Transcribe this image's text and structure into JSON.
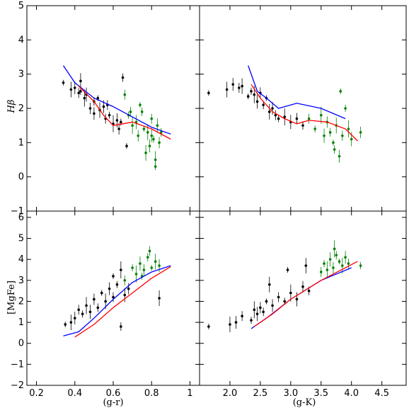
{
  "chart_data": [
    {
      "panel": "top-left",
      "type": "scatter",
      "xlabel": "",
      "ylabel": "Hβ",
      "xlim": [
        0.15,
        1.05
      ],
      "ylim": [
        -1,
        5
      ],
      "yticks": [
        -1,
        0,
        1,
        2,
        3,
        4,
        5
      ],
      "series": [
        {
          "color": "#000000",
          "kind": "points",
          "x": [
            0.34,
            0.38,
            0.4,
            0.42,
            0.43,
            0.45,
            0.46,
            0.48,
            0.5,
            0.52,
            0.53,
            0.55,
            0.56,
            0.58,
            0.6,
            0.62,
            0.63,
            0.65,
            0.67,
            0.43,
            0.5,
            0.57,
            0.64
          ],
          "y": [
            2.75,
            2.55,
            2.6,
            2.45,
            2.5,
            2.3,
            2.4,
            2.0,
            2.2,
            2.3,
            1.95,
            2.05,
            1.7,
            1.8,
            1.55,
            1.65,
            1.4,
            2.9,
            0.9,
            2.8,
            1.85,
            2.1,
            1.6
          ]
        },
        {
          "color": "#008000",
          "kind": "points",
          "x": [
            0.66,
            0.68,
            0.7,
            0.72,
            0.73,
            0.75,
            0.76,
            0.78,
            0.79,
            0.8,
            0.81,
            0.82,
            0.83,
            0.84,
            0.85,
            0.74,
            0.77,
            0.8,
            0.69,
            0.82
          ],
          "y": [
            2.4,
            1.8,
            1.5,
            1.6,
            1.2,
            1.9,
            1.4,
            1.3,
            0.9,
            1.7,
            1.1,
            0.5,
            1.5,
            1.0,
            1.3,
            2.1,
            0.7,
            1.2,
            1.9,
            0.3
          ]
        },
        {
          "color": "#0000ff",
          "kind": "line",
          "x": [
            0.34,
            0.4,
            0.5,
            0.6,
            0.7,
            0.8,
            0.9
          ],
          "y": [
            3.25,
            2.75,
            2.3,
            2.05,
            1.75,
            1.45,
            1.25
          ]
        },
        {
          "color": "#ff0000",
          "kind": "line",
          "x": [
            0.42,
            0.5,
            0.55,
            0.6,
            0.65,
            0.7,
            0.8,
            0.9
          ],
          "y": [
            2.65,
            2.2,
            1.8,
            1.5,
            1.55,
            1.6,
            1.4,
            1.1
          ]
        }
      ]
    },
    {
      "panel": "top-right",
      "type": "scatter",
      "xlabel": "",
      "ylabel": "",
      "xlim": [
        1.5,
        4.9
      ],
      "ylim": [
        -1,
        5
      ],
      "series": [
        {
          "color": "#000000",
          "kind": "points",
          "x": [
            1.65,
            1.95,
            2.05,
            2.15,
            2.35,
            2.4,
            2.45,
            2.5,
            2.55,
            2.6,
            2.65,
            2.7,
            2.75,
            2.8,
            2.9,
            3.0,
            3.1,
            3.2,
            2.3,
            2.2
          ],
          "y": [
            2.45,
            2.55,
            2.7,
            2.6,
            2.5,
            2.4,
            2.2,
            2.45,
            2.1,
            2.3,
            1.9,
            2.0,
            1.8,
            1.7,
            1.75,
            1.6,
            1.7,
            1.5,
            2.35,
            2.65
          ]
        },
        {
          "color": "#008000",
          "kind": "points",
          "x": [
            3.3,
            3.4,
            3.5,
            3.55,
            3.6,
            3.65,
            3.7,
            3.75,
            3.8,
            3.85,
            3.9,
            3.95,
            4.0,
            4.15,
            3.72,
            3.82
          ],
          "y": [
            1.7,
            1.4,
            1.8,
            1.2,
            1.6,
            1.3,
            1.0,
            1.5,
            0.6,
            1.2,
            2.0,
            1.4,
            1.1,
            1.3,
            0.8,
            2.5
          ]
        },
        {
          "color": "#0000ff",
          "kind": "line",
          "x": [
            2.3,
            2.45,
            2.6,
            2.8,
            3.1,
            3.5,
            3.9
          ],
          "y": [
            3.25,
            2.5,
            2.3,
            2.0,
            2.15,
            2.0,
            1.7
          ]
        },
        {
          "color": "#ff0000",
          "kind": "line",
          "x": [
            2.35,
            2.5,
            2.7,
            2.9,
            3.1,
            3.3,
            3.6,
            3.9,
            4.1
          ],
          "y": [
            2.7,
            2.3,
            1.9,
            1.7,
            1.55,
            1.65,
            1.6,
            1.4,
            1.05
          ]
        }
      ]
    },
    {
      "panel": "bottom-left",
      "type": "scatter",
      "xlabel": "(g-r)",
      "ylabel": "[MgFe]",
      "xlim": [
        0.15,
        1.05
      ],
      "ylim": [
        -2,
        6.3
      ],
      "xticks": [
        0.2,
        0.4,
        0.6,
        0.8,
        1.0
      ],
      "yticks": [
        -2,
        -1,
        0,
        1,
        2,
        3,
        4,
        5,
        6
      ],
      "series": [
        {
          "color": "#000000",
          "kind": "points",
          "x": [
            0.35,
            0.38,
            0.4,
            0.42,
            0.44,
            0.46,
            0.48,
            0.5,
            0.52,
            0.54,
            0.56,
            0.58,
            0.6,
            0.62,
            0.64,
            0.66,
            0.68,
            0.64,
            0.6,
            0.84
          ],
          "y": [
            0.9,
            1.0,
            1.2,
            1.6,
            1.4,
            1.8,
            1.5,
            2.1,
            1.7,
            2.4,
            2.0,
            2.6,
            2.2,
            2.8,
            3.5,
            2.3,
            2.6,
            0.8,
            3.2,
            2.15
          ]
        },
        {
          "color": "#008000",
          "kind": "points",
          "x": [
            0.66,
            0.7,
            0.72,
            0.74,
            0.76,
            0.78,
            0.8,
            0.82,
            0.84,
            0.79,
            0.75
          ],
          "y": [
            3.0,
            3.6,
            3.3,
            3.8,
            3.5,
            4.1,
            3.6,
            3.9,
            3.7,
            4.4,
            3.2
          ]
        },
        {
          "color": "#0000ff",
          "kind": "line",
          "x": [
            0.34,
            0.42,
            0.5,
            0.6,
            0.7,
            0.8,
            0.9
          ],
          "y": [
            0.35,
            0.55,
            1.2,
            2.1,
            2.9,
            3.4,
            3.7
          ]
        },
        {
          "color": "#ff0000",
          "kind": "line",
          "x": [
            0.4,
            0.5,
            0.6,
            0.7,
            0.8,
            0.9
          ],
          "y": [
            0.3,
            0.9,
            1.7,
            2.4,
            3.1,
            3.65
          ]
        }
      ]
    },
    {
      "panel": "bottom-right",
      "type": "scatter",
      "xlabel": "(g-K)",
      "ylabel": "",
      "xlim": [
        1.5,
        4.9
      ],
      "ylim": [
        -2,
        6.3
      ],
      "xticks": [
        2.0,
        2.5,
        3.0,
        3.5,
        4.0,
        4.5
      ],
      "xtick_labels": [
        "2.0",
        "2.5",
        "3.0",
        "3.5",
        "4.0",
        "4.5"
      ],
      "series": [
        {
          "color": "#000000",
          "kind": "points",
          "x": [
            1.65,
            2.0,
            2.1,
            2.2,
            2.35,
            2.4,
            2.45,
            2.5,
            2.55,
            2.6,
            2.65,
            2.7,
            2.8,
            2.9,
            3.0,
            3.1,
            3.2,
            3.3,
            2.95,
            3.25
          ],
          "y": [
            0.8,
            0.9,
            1.0,
            1.3,
            1.1,
            1.6,
            1.4,
            1.7,
            1.5,
            2.0,
            2.8,
            1.8,
            2.2,
            2.0,
            2.4,
            2.1,
            2.7,
            2.5,
            3.5,
            3.7
          ]
        },
        {
          "color": "#008000",
          "kind": "points",
          "x": [
            3.5,
            3.55,
            3.6,
            3.65,
            3.7,
            3.75,
            3.8,
            3.85,
            3.9,
            3.95,
            4.15,
            3.72
          ],
          "y": [
            3.4,
            3.8,
            3.5,
            4.0,
            3.6,
            4.2,
            3.9,
            3.7,
            4.1,
            3.8,
            3.7,
            4.5
          ]
        },
        {
          "color": "#0000ff",
          "kind": "line",
          "x": [
            2.35,
            2.6,
            3.0,
            3.5,
            4.0
          ],
          "y": [
            0.7,
            1.2,
            2.1,
            3.0,
            3.6
          ]
        },
        {
          "color": "#ff0000",
          "kind": "line",
          "x": [
            2.4,
            2.7,
            3.0,
            3.5,
            4.1
          ],
          "y": [
            0.8,
            1.4,
            2.1,
            3.0,
            3.9
          ]
        }
      ]
    }
  ]
}
